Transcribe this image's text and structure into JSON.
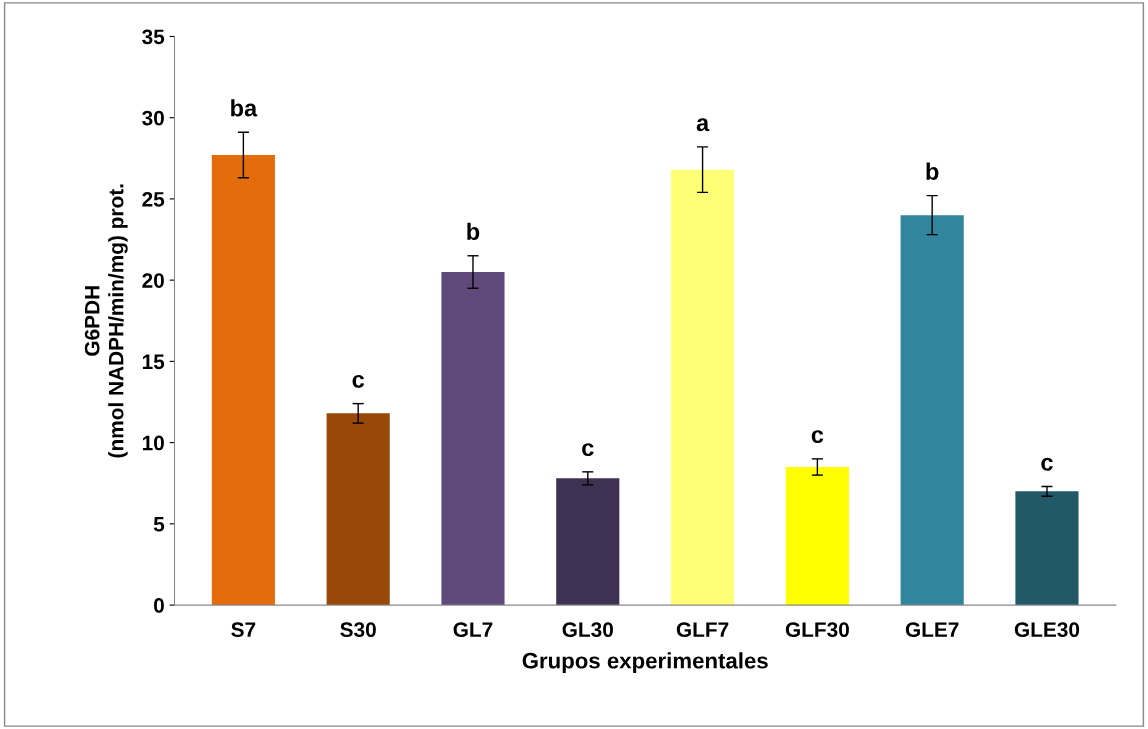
{
  "chart_data": {
    "type": "bar",
    "xlabel": "Grupos experimentales",
    "ylabel": "G6PDH\n(nmol NADPH/min/mg) prot.",
    "categories": [
      "S7",
      "S30",
      "GL7",
      "GL30",
      "GLF7",
      "GLF30",
      "GLE7",
      "GLE30"
    ],
    "values": [
      27.7,
      11.8,
      20.5,
      7.8,
      26.8,
      8.5,
      24.0,
      7.0
    ],
    "errors": [
      1.4,
      0.6,
      1.0,
      0.4,
      1.4,
      0.5,
      1.2,
      0.3
    ],
    "colors": [
      "#e46c0a",
      "#984807",
      "#604a7b",
      "#3f3151",
      "#ffff75",
      "#ffff00",
      "#31859c",
      "#215968"
    ],
    "annotations": [
      {
        "text": "ba",
        "x": "S7",
        "y": 29.1
      },
      {
        "text": "c",
        "x": "S30",
        "y": 12.4
      },
      {
        "text": "b",
        "x": "GL7",
        "y": 21.5
      },
      {
        "text": "c",
        "x": "GL30",
        "y": 8.2
      },
      {
        "text": "a",
        "x": "GLF7",
        "y": 28.2
      },
      {
        "text": "c",
        "x": "GLF30",
        "y": 9.0
      },
      {
        "text": "b",
        "x": "GLE7",
        "y": 25.2
      },
      {
        "text": "c",
        "x": "GLE30",
        "y": 7.3
      }
    ],
    "ylim": [
      0,
      35
    ],
    "yticks": [
      0,
      5,
      10,
      15,
      20,
      25,
      30,
      35
    ],
    "grid": false,
    "legend": false
  }
}
